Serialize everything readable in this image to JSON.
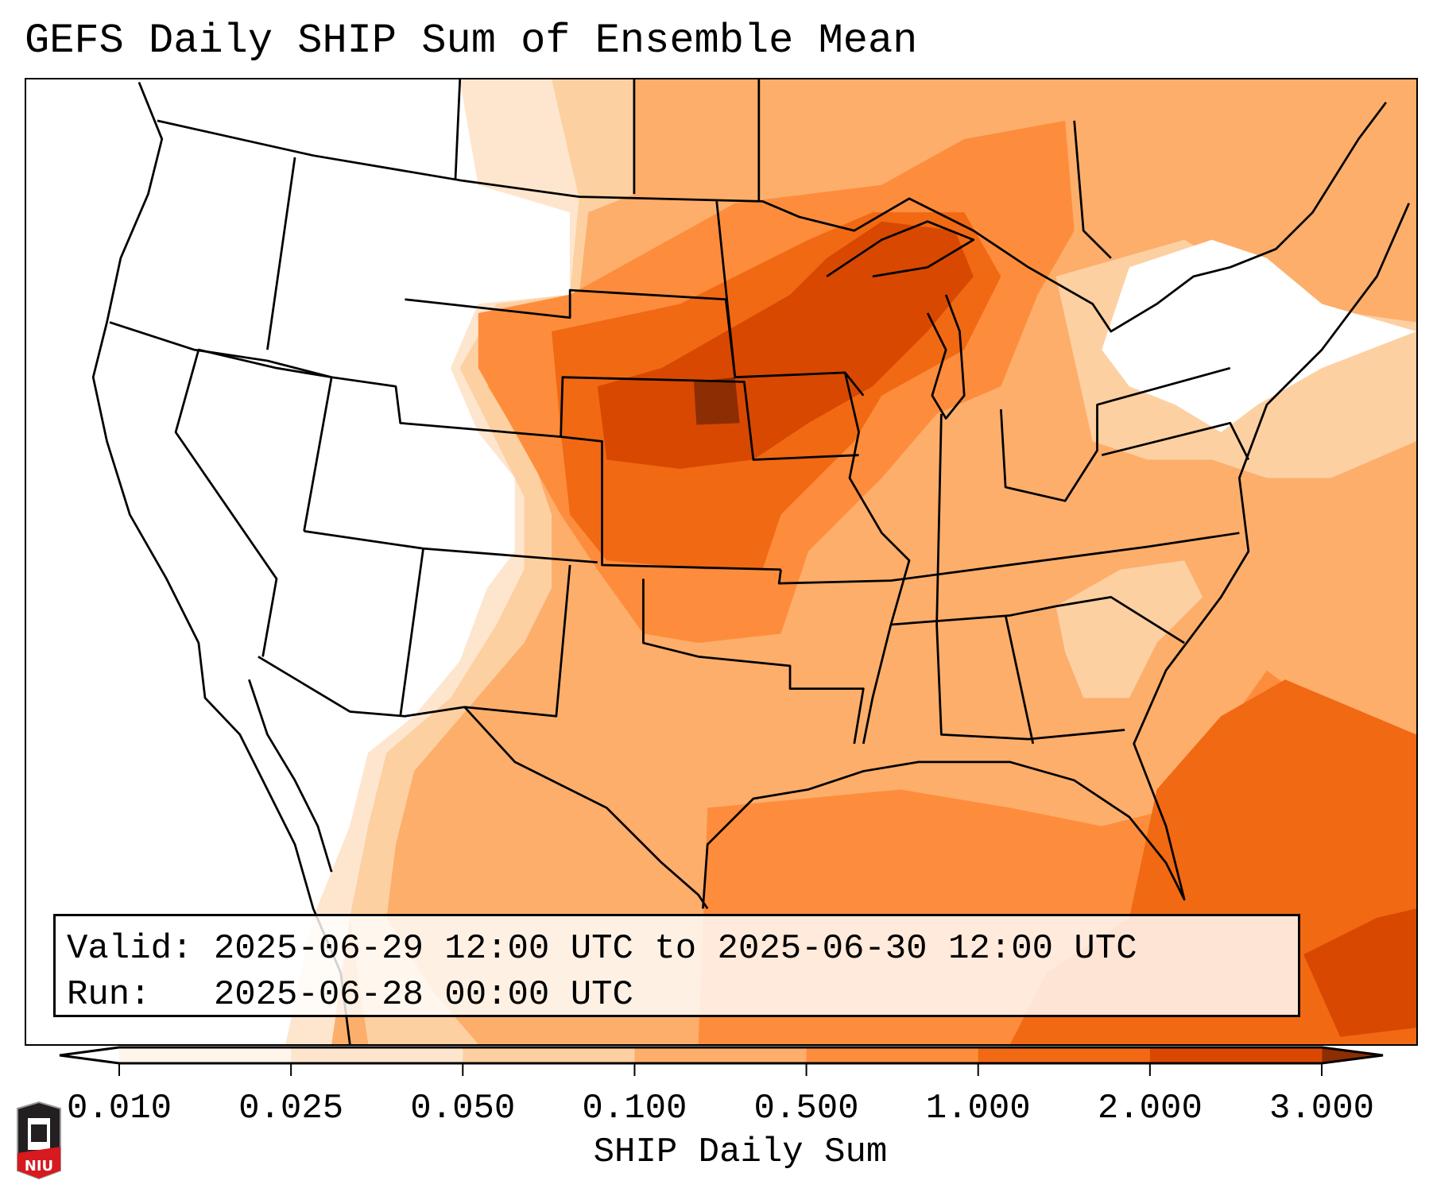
{
  "title": "GEFS Daily SHIP Sum of Ensemble Mean",
  "info": {
    "valid_label": "Valid:",
    "valid_value": "2025-06-29 12:00 UTC to 2025-06-30 12:00 UTC",
    "run_label": "Run:",
    "run_value": "2025-06-28 00:00 UTC"
  },
  "colorbar": {
    "label": "SHIP Daily Sum",
    "ticks": [
      "0.010",
      "0.025",
      "0.050",
      "0.100",
      "0.500",
      "1.000",
      "2.000",
      "3.000"
    ],
    "colors": [
      "#fff5eb",
      "#fee6ce",
      "#fdd0a2",
      "#fdae6b",
      "#fd8d3c",
      "#f16913",
      "#d94801"
    ],
    "under_color": "#ffffff",
    "over_color": "#8c2d04"
  },
  "logo": {
    "text": "NIU",
    "icon": "niu-logo"
  }
}
